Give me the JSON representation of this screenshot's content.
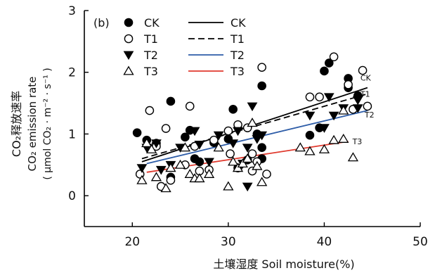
{
  "chart_data": {
    "type": "scatter",
    "panel_label": "(b)",
    "xlabel": "土壤湿度 Soil moisture(%)",
    "ylabel_lines": [
      "CO₂释放速率",
      "CO₂ emission rate",
      "( μmol CO₂ · m⁻² · s⁻¹ )"
    ],
    "xlim": [
      15,
      50
    ],
    "ylim": [
      -0.5,
      3
    ],
    "xticks": [
      20,
      30,
      40,
      50
    ],
    "yticks": [
      0,
      1,
      2,
      3
    ],
    "legend": {
      "position": "top-left",
      "markers": [
        "CK",
        "T1",
        "T2",
        "T3"
      ],
      "lines": [
        "CK",
        "T1",
        "T2",
        "T3"
      ]
    },
    "series": [
      {
        "name": "CK",
        "marker": "filled-circle",
        "color": "#000000",
        "points": [
          [
            20.5,
            1.02
          ],
          [
            21.5,
            0.9
          ],
          [
            22.5,
            0.85
          ],
          [
            24,
            1.53
          ],
          [
            24,
            0.3
          ],
          [
            25.5,
            0.95
          ],
          [
            26,
            1.06
          ],
          [
            26.5,
            0.6
          ],
          [
            27,
            0.55
          ],
          [
            28.5,
            0.86
          ],
          [
            30,
            0.92
          ],
          [
            30.5,
            1.4
          ],
          [
            31,
            0.45
          ],
          [
            32,
            0.58
          ],
          [
            33,
            1.0
          ],
          [
            33.5,
            1.78
          ],
          [
            33.5,
            0.6
          ],
          [
            33.5,
            0.78
          ],
          [
            38.5,
            0.98
          ],
          [
            39.5,
            1.1
          ],
          [
            40,
            2.02
          ],
          [
            40.5,
            2.15
          ],
          [
            42.5,
            1.9
          ],
          [
            42.5,
            1.75
          ],
          [
            43.5,
            1.62
          ]
        ]
      },
      {
        "name": "T1",
        "marker": "open-circle",
        "color": "#000000",
        "points": [
          [
            20.8,
            0.35
          ],
          [
            21.8,
            1.38
          ],
          [
            22.5,
            0.8
          ],
          [
            23,
            0.15
          ],
          [
            23.5,
            1.09
          ],
          [
            24,
            0.25
          ],
          [
            25.5,
            0.5
          ],
          [
            26,
            1.45
          ],
          [
            26.5,
            0.8
          ],
          [
            27,
            0.4
          ],
          [
            28,
            0.42
          ],
          [
            28.5,
            0.9
          ],
          [
            30,
            1.05
          ],
          [
            30.2,
            0.68
          ],
          [
            31,
            1.15
          ],
          [
            32,
            1.1
          ],
          [
            32.5,
            0.68
          ],
          [
            32.5,
            0.4
          ],
          [
            33,
            0.55
          ],
          [
            33.5,
            2.08
          ],
          [
            34,
            0.35
          ],
          [
            38.5,
            1.6
          ],
          [
            39.5,
            1.6
          ],
          [
            41,
            2.25
          ],
          [
            42.5,
            1.8
          ],
          [
            43,
            1.4
          ],
          [
            44,
            2.03
          ],
          [
            44.5,
            1.45
          ]
        ]
      },
      {
        "name": "T2",
        "marker": "filled-triangle-down",
        "color": "#000000",
        "points": [
          [
            21,
            0.45
          ],
          [
            21.5,
            0.78
          ],
          [
            22.5,
            0.85
          ],
          [
            23,
            0.42
          ],
          [
            24,
            0.5
          ],
          [
            25,
            0.78
          ],
          [
            26.5,
            1.05
          ],
          [
            27,
            0.83
          ],
          [
            28,
            0.55
          ],
          [
            29,
            0.98
          ],
          [
            30.5,
            0.85
          ],
          [
            31,
            1.05
          ],
          [
            31.5,
            0.52
          ],
          [
            32,
            0.15
          ],
          [
            32,
            0.78
          ],
          [
            32.5,
            1.45
          ],
          [
            33,
            0.92
          ],
          [
            33.5,
            0.98
          ],
          [
            38.5,
            1.3
          ],
          [
            40,
            1.1
          ],
          [
            40.5,
            1.6
          ],
          [
            41,
            1.3
          ],
          [
            42,
            1.42
          ],
          [
            43.5,
            1.55
          ],
          [
            43.5,
            1.42
          ]
        ]
      },
      {
        "name": "T3",
        "marker": "open-triangle-up",
        "color": "#000000",
        "points": [
          [
            21,
            0.25
          ],
          [
            21.5,
            0.85
          ],
          [
            22,
            0.75
          ],
          [
            22.5,
            0.3
          ],
          [
            23.5,
            0.12
          ],
          [
            24,
            0.45
          ],
          [
            25,
            0.5
          ],
          [
            25.5,
            0.78
          ],
          [
            26,
            0.35
          ],
          [
            26.5,
            0.28
          ],
          [
            27,
            0.28
          ],
          [
            28,
            0.35
          ],
          [
            29,
            0.78
          ],
          [
            30,
            0.15
          ],
          [
            30.5,
            0.55
          ],
          [
            31,
            0.45
          ],
          [
            31.5,
            0.52
          ],
          [
            32,
            0.6
          ],
          [
            32.5,
            1.18
          ],
          [
            33,
            0.48
          ],
          [
            33.5,
            0.22
          ],
          [
            37.5,
            0.78
          ],
          [
            38.5,
            0.72
          ],
          [
            40,
            0.75
          ],
          [
            41,
            0.9
          ],
          [
            42,
            0.92
          ],
          [
            42,
            1.38
          ],
          [
            43,
            0.62
          ]
        ]
      }
    ],
    "fit_lines": [
      {
        "name": "CK",
        "color": "#000000",
        "dash": "solid",
        "x": [
          21,
          44.5
        ],
        "y": [
          0.55,
          1.75
        ],
        "end_label": "CK"
      },
      {
        "name": "T1",
        "color": "#000000",
        "dash": "dashed",
        "x": [
          21,
          44.5
        ],
        "y": [
          0.6,
          1.65
        ],
        "end_label": "T1"
      },
      {
        "name": "T2",
        "color": "#2e5da8",
        "dash": "solid",
        "x": [
          21.5,
          44.5
        ],
        "y": [
          0.52,
          1.38
        ],
        "end_label": "T2"
      },
      {
        "name": "T3",
        "color": "#e03a2e",
        "dash": "solid",
        "x": [
          21.5,
          42.5
        ],
        "y": [
          0.38,
          0.88
        ],
        "end_label": "T3"
      }
    ]
  }
}
